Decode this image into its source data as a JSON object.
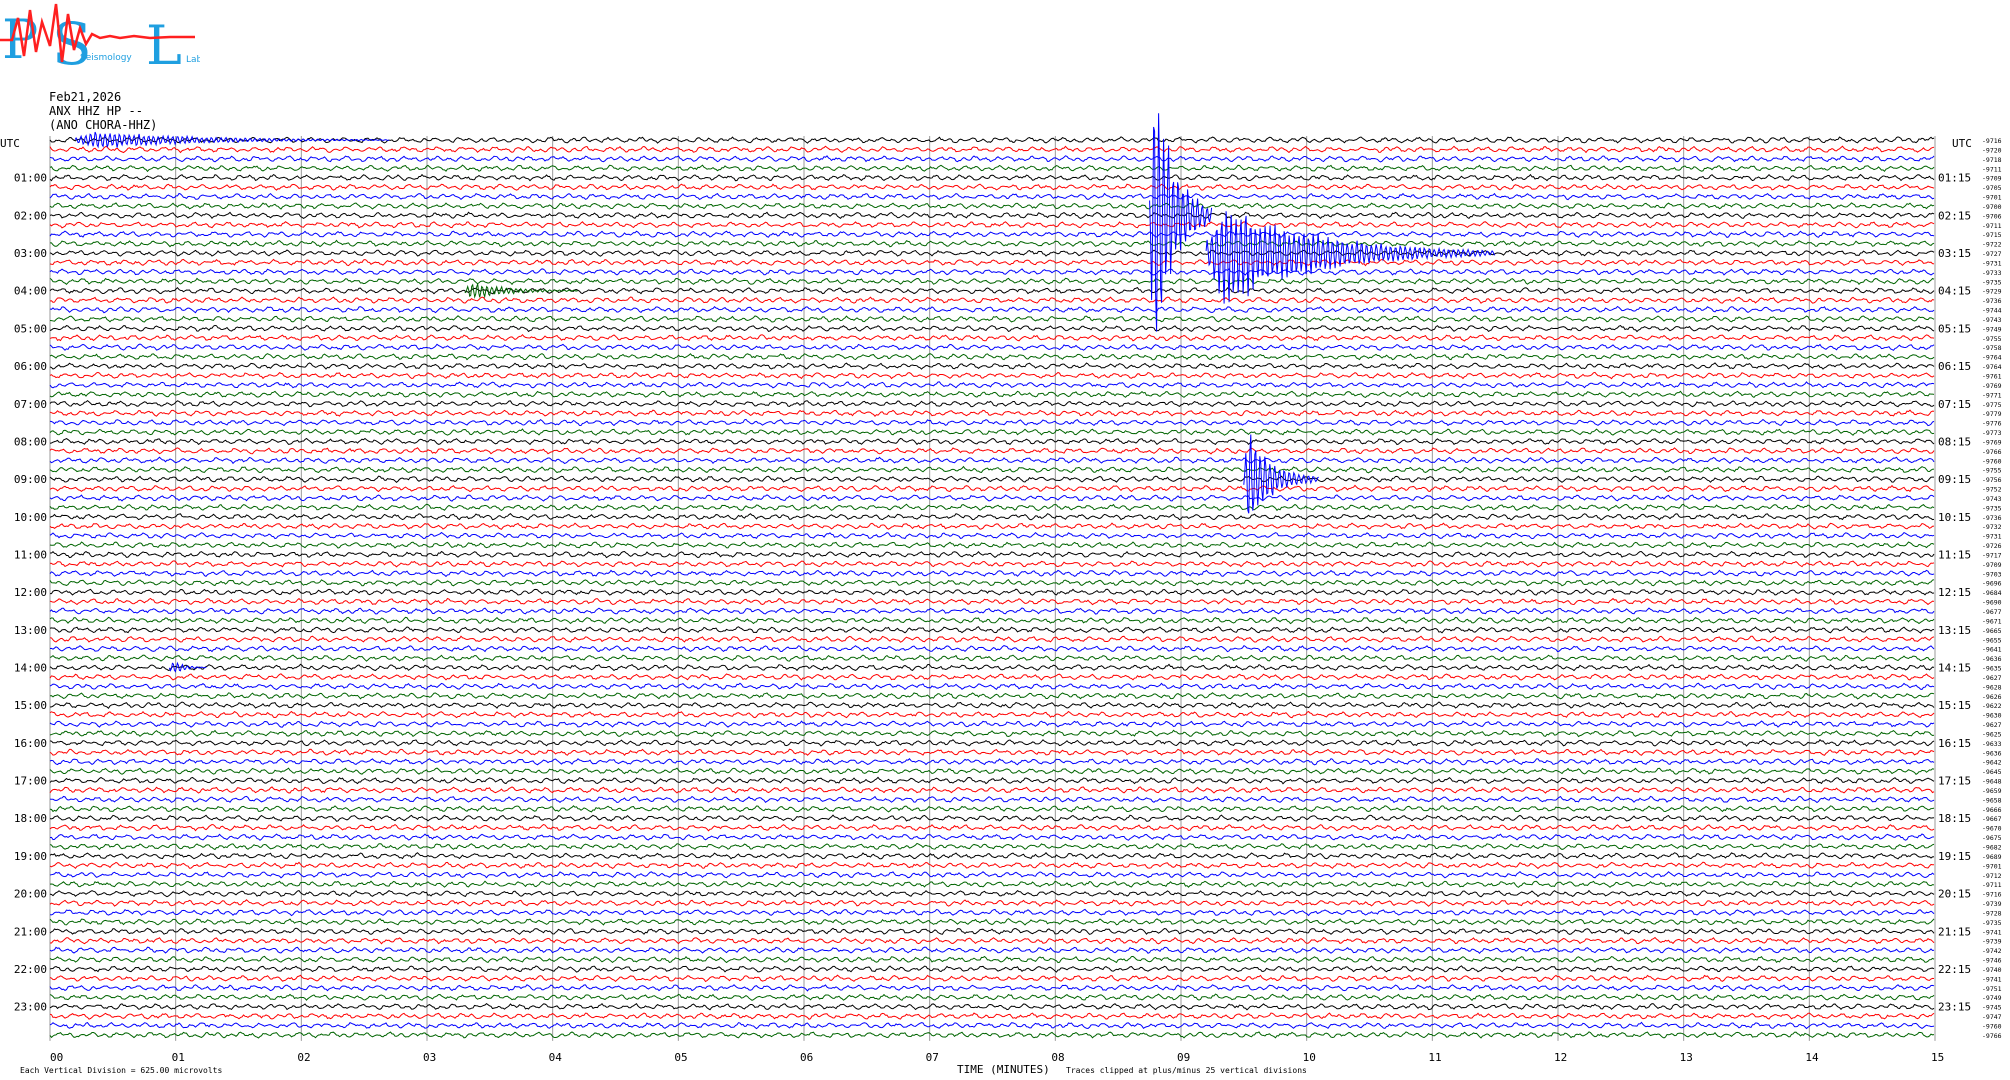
{
  "header": {
    "date": "Feb21,2026",
    "station": "ANX HHZ HP --",
    "network": "(ANO CHORA-HHZ)"
  },
  "logo": {
    "letters": [
      "P",
      "S",
      "L"
    ],
    "tagline_1": "Seismology",
    "tagline_2": "Lab",
    "blue": "#1f9fe0",
    "red": "#ff2020"
  },
  "footer": {
    "vertical_division": "Each Vertical Division =  625.00 microvolts",
    "xlabel": "TIME (MINUTES)",
    "clip_note": "Traces clipped at plus/minus 25 vertical divisions"
  },
  "chart_data": {
    "type": "helicorder",
    "left_axis_label": "UTC",
    "right_axis_label": "UTC",
    "left_ticks": [
      "01:00",
      "02:00",
      "03:00",
      "04:00",
      "05:00",
      "06:00",
      "07:00",
      "08:00",
      "09:00",
      "10:00",
      "11:00",
      "12:00",
      "13:00",
      "14:00",
      "15:00",
      "16:00",
      "17:00",
      "18:00",
      "19:00",
      "20:00",
      "21:00",
      "22:00",
      "23:00"
    ],
    "right_ticks": [
      "01:15",
      "02:15",
      "03:15",
      "04:15",
      "05:15",
      "06:15",
      "07:15",
      "08:15",
      "09:15",
      "10:15",
      "11:15",
      "12:15",
      "13:15",
      "14:15",
      "15:15",
      "16:15",
      "17:15",
      "18:15",
      "19:15",
      "20:15",
      "21:15",
      "22:15",
      "23:15"
    ],
    "x_ticks": [
      "00",
      "01",
      "02",
      "03",
      "04",
      "05",
      "06",
      "07",
      "08",
      "09",
      "10",
      "11",
      "12",
      "13",
      "14",
      "15"
    ],
    "xlim": [
      0,
      15
    ],
    "minutes_per_line": 15,
    "num_lines": 96,
    "trace_colors": [
      "#000000",
      "#ff0000",
      "#0000ff",
      "#006400"
    ],
    "grid": true,
    "events": [
      {
        "line": 0,
        "start_min": 0.2,
        "duration_min": 2.5,
        "amp": 12,
        "color": "#0000ff"
      },
      {
        "line": 16,
        "start_min": 3.3,
        "duration_min": 0.9,
        "amp": 12,
        "color": "#006400"
      },
      {
        "line": 8,
        "start_min": 8.75,
        "duration_min": 0.5,
        "amp": 200,
        "color": "#0000ff"
      },
      {
        "line": 12,
        "start_min": 9.2,
        "duration_min": 2.3,
        "amp": 70,
        "color": "#0000ff"
      },
      {
        "line": 36,
        "start_min": 9.5,
        "duration_min": 0.6,
        "amp": 70,
        "color": "#0000ff"
      },
      {
        "line": 56,
        "start_min": 0.95,
        "duration_min": 0.3,
        "amp": 10,
        "color": "#0000ff"
      }
    ],
    "right_values": [
      "-9716",
      "-9720",
      "-9718",
      "-9711",
      "-9709",
      "-9705",
      "-9701",
      "-9700",
      "-9706",
      "-9711",
      "-9715",
      "-9722",
      "-9727",
      "-9731",
      "-9733",
      "-9735",
      "-9729",
      "-9736",
      "-9744",
      "-9743",
      "-9749",
      "-9755",
      "-9758",
      "-9764",
      "-9764",
      "-9761",
      "-9769",
      "-9771",
      "-9775",
      "-9779",
      "-9776",
      "-9773",
      "-9769",
      "-9766",
      "-9760",
      "-9755",
      "-9756",
      "-9752",
      "-9743",
      "-9735",
      "-9736",
      "-9732",
      "-9731",
      "-9726",
      "-9717",
      "-9709",
      "-9703",
      "-9696",
      "-9684",
      "-9690",
      "-9677",
      "-9671",
      "-9665",
      "-9655",
      "-9641",
      "-9636",
      "-9635",
      "-9627",
      "-9628",
      "-9626",
      "-9622",
      "-9630",
      "-9627",
      "-9625",
      "-9633",
      "-9636",
      "-9642",
      "-9645",
      "-9648",
      "-9659",
      "-9658",
      "-9666",
      "-9667",
      "-9670",
      "-9675",
      "-9682",
      "-9689",
      "-9701",
      "-9712",
      "-9711",
      "-9716",
      "-9739",
      "-9728",
      "-9735",
      "-9741",
      "-9739",
      "-9742",
      "-9746",
      "-9740",
      "-9741",
      "-9751",
      "-9749",
      "-9745",
      "-9747",
      "-9760",
      "-9766"
    ]
  }
}
